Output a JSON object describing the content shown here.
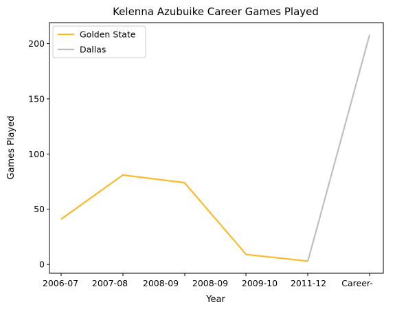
{
  "chart_data": {
    "type": "line",
    "title": "Kelenna Azubuike Career Games Played",
    "xlabel": "Year",
    "ylabel": "Games Played",
    "ylim": [
      -8,
      219
    ],
    "yticks": [
      0,
      50,
      100,
      150,
      200
    ],
    "x_tick_labels": [
      "2006-07",
      "2007-08",
      "2008-09",
      "2008-09",
      "2009-10",
      "2011-12",
      "Career-"
    ],
    "series": [
      {
        "name": "Golden State",
        "color": "#FDB927",
        "points": [
          {
            "x": 0,
            "y": 41
          },
          {
            "x": 1,
            "y": 81
          },
          {
            "x": 2,
            "y": 74
          },
          {
            "x": 3,
            "y": 9
          },
          {
            "x": 4,
            "y": 3
          }
        ]
      },
      {
        "name": "Dallas",
        "color": "#BFBFBF",
        "points": [
          {
            "x": 4,
            "y": 3
          },
          {
            "x": 5,
            "y": 208
          }
        ]
      }
    ],
    "legend": "top-left",
    "grid": false
  }
}
